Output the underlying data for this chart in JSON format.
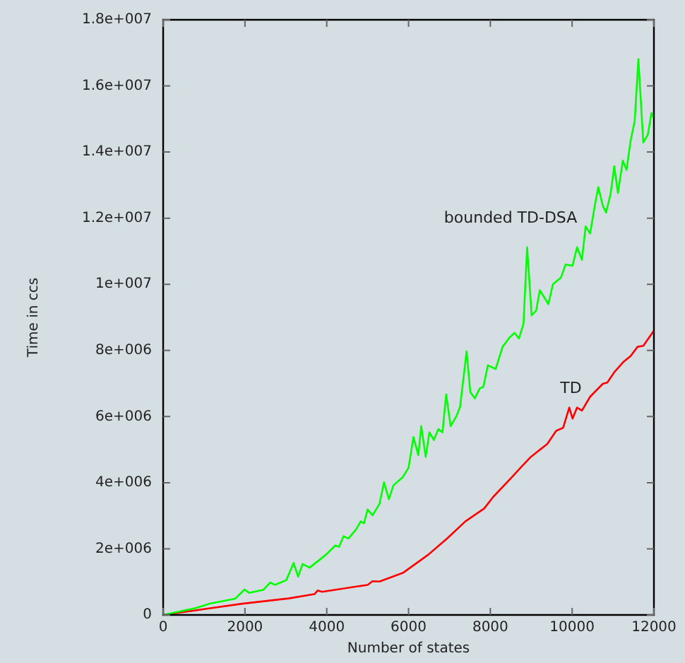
{
  "chart_data": {
    "type": "line",
    "xlabel": "Number of states",
    "ylabel": "Time in ccs",
    "xlim": [
      0,
      12000
    ],
    "ylim": [
      0,
      18000000
    ],
    "xticks": [
      0,
      2000,
      4000,
      6000,
      8000,
      10000,
      12000
    ],
    "yticks": [
      0,
      {
        "value": 2000000,
        "label": "2e+006"
      },
      {
        "value": 4000000,
        "label": "4e+006"
      },
      {
        "value": 6000000,
        "label": "6e+006"
      },
      {
        "value": 8000000,
        "label": "8e+006"
      },
      {
        "value": 10000000,
        "label": "1e+007"
      },
      {
        "value": 12000000,
        "label": "1.2e+007"
      },
      {
        "value": 14000000,
        "label": "1.4e+007"
      },
      {
        "value": 16000000,
        "label": "1.6e+007"
      },
      {
        "value": 18000000,
        "label": "1.8e+007"
      }
    ],
    "grid": false,
    "legend": false,
    "marker": "none",
    "line_style": "solid",
    "series": [
      {
        "name": "bounded TD-DSA",
        "color": "#00ff00",
        "x": [
          0,
          800,
          1140,
          1760,
          1990,
          2100,
          2450,
          2620,
          2730,
          3010,
          3190,
          3300,
          3410,
          3580,
          3980,
          4210,
          4300,
          4410,
          4530,
          4720,
          4830,
          4910,
          5000,
          5120,
          5290,
          5400,
          5520,
          5630,
          5860,
          6000,
          6120,
          6240,
          6310,
          6420,
          6510,
          6620,
          6730,
          6830,
          6920,
          7030,
          7170,
          7260,
          7420,
          7510,
          7620,
          7740,
          7830,
          7940,
          8130,
          8300,
          8470,
          8590,
          8700,
          8810,
          8900,
          9010,
          9120,
          9210,
          9420,
          9530,
          9730,
          9840,
          10010,
          10120,
          10240,
          10330,
          10440,
          10560,
          10640,
          10750,
          10830,
          10940,
          11030,
          11120,
          11240,
          11330,
          11430,
          11530,
          11620,
          11740,
          11850,
          11940,
          12000
        ],
        "values": [
          0,
          210000,
          340000,
          490000,
          770000,
          670000,
          760000,
          980000,
          910000,
          1050000,
          1570000,
          1160000,
          1540000,
          1430000,
          1820000,
          2100000,
          2060000,
          2380000,
          2310000,
          2590000,
          2830000,
          2770000,
          3190000,
          3010000,
          3360000,
          4010000,
          3500000,
          3920000,
          4170000,
          4450000,
          5380000,
          4830000,
          5710000,
          4780000,
          5520000,
          5290000,
          5620000,
          5520000,
          6670000,
          5710000,
          6010000,
          6290000,
          7970000,
          6740000,
          6550000,
          6850000,
          6900000,
          7550000,
          7440000,
          8110000,
          8390000,
          8530000,
          8360000,
          8800000,
          11120000,
          9060000,
          9200000,
          9820000,
          9400000,
          10000000,
          10210000,
          10600000,
          10560000,
          11120000,
          10740000,
          11750000,
          11540000,
          12420000,
          12940000,
          12380000,
          12170000,
          12730000,
          13570000,
          12760000,
          13740000,
          13460000,
          14340000,
          14940000,
          16810000,
          14290000,
          14520000,
          15180000,
          15040000
        ]
      },
      {
        "name": "TD",
        "color": "#ff0000",
        "x": [
          0,
          800,
          970,
          1930,
          3070,
          3700,
          3780,
          3890,
          5000,
          5120,
          5290,
          5860,
          6480,
          6940,
          7390,
          7850,
          8070,
          8530,
          8760,
          8990,
          9390,
          9610,
          9780,
          9930,
          10010,
          10120,
          10240,
          10440,
          10750,
          10860,
          11030,
          11260,
          11430,
          11600,
          11740,
          12000
        ],
        "values": [
          0,
          140000,
          170000,
          340000,
          500000,
          630000,
          740000,
          700000,
          910000,
          1020000,
          1010000,
          1270000,
          1820000,
          2310000,
          2830000,
          3220000,
          3570000,
          4170000,
          4480000,
          4780000,
          5170000,
          5570000,
          5660000,
          6270000,
          5940000,
          6270000,
          6180000,
          6600000,
          6990000,
          7030000,
          7340000,
          7660000,
          7830000,
          8110000,
          8140000,
          8600000
        ]
      }
    ]
  }
}
